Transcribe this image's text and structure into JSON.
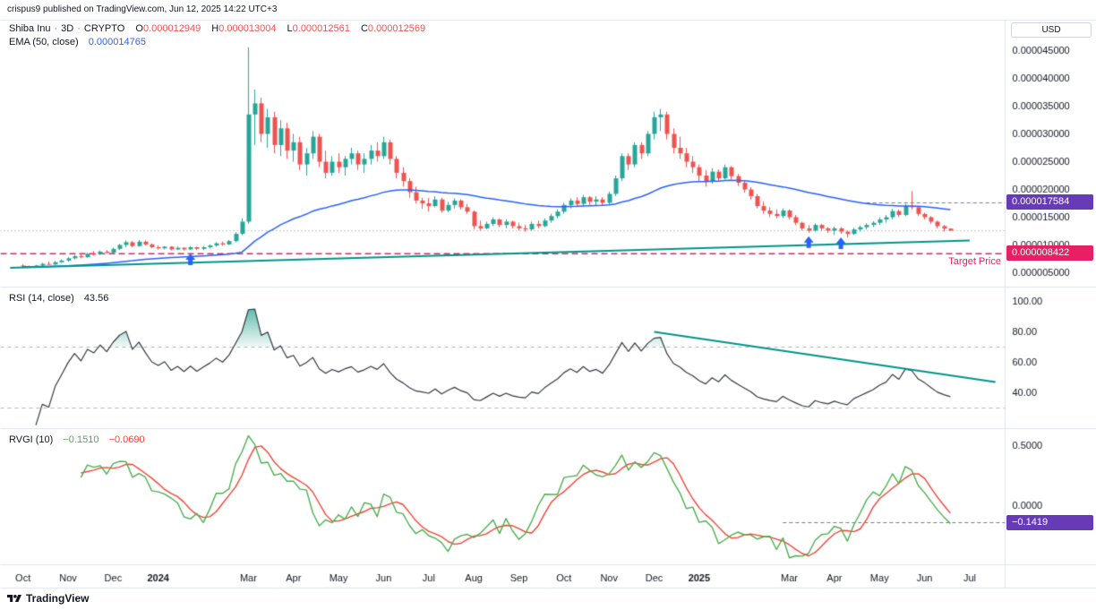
{
  "meta": {
    "attribution": "crispus9 published on TradingView.com, Jun 12, 2025 14:22 UTC+3",
    "footer_brand": "TradingView"
  },
  "axis": {
    "currency": "USD"
  },
  "legend": {
    "symbol": "Shiba Inu",
    "separator": "·",
    "interval": "3D",
    "market": "CRYPTO",
    "ohlc": {
      "o_label": "O",
      "o": "0.000012949",
      "h_label": "H",
      "h": "0.000013004",
      "l_label": "L",
      "l": "0.000012561",
      "c_label": "C",
      "c": "0.000012569"
    },
    "ema_label": "EMA (50, close)",
    "ema_value": "0.000014765",
    "rsi_label": "RSI (14, close)",
    "rsi_value": "43.56",
    "rvgi_label": "RVGI (10)",
    "rvgi_value": "−0.1510",
    "rvgi_signal": "−0.0690"
  },
  "colors": {
    "up": "#26a69a",
    "down": "#ef5350",
    "ema": "#2962ff",
    "trend": "#009688",
    "target": "#e91e63",
    "arrow": "#2962ff",
    "badge_purple": "#673ab7",
    "rsi_line": "#363a45",
    "rsi_fill": "#089981",
    "band": "#b2b5be",
    "rvgi_main": "#4caf50",
    "rvgi_signal": "#f44336",
    "axis_text": "#131722",
    "separator_line": "#e0e3eb",
    "dotted": "#9598a1",
    "ray": "#787b86"
  },
  "chart_data": {
    "type": "candlestick",
    "title": "Shiba Inu · 3D · CRYPTO",
    "price_unit_multiplier": 1e-06,
    "price_ylim_micro": [
      3.5,
      47.6
    ],
    "ema_period": 50,
    "candles": [
      [
        6.3,
        6.5,
        6.0,
        6.1
      ],
      [
        6.1,
        6.3,
        5.9,
        6.0
      ],
      [
        6.0,
        6.4,
        5.9,
        6.3
      ],
      [
        6.3,
        6.8,
        6.2,
        6.6
      ],
      [
        6.6,
        7.0,
        6.4,
        6.5
      ],
      [
        6.5,
        7.1,
        6.4,
        6.9
      ],
      [
        6.9,
        7.4,
        6.8,
        7.2
      ],
      [
        7.2,
        7.8,
        7.0,
        7.6
      ],
      [
        7.6,
        8.2,
        7.4,
        8.0
      ],
      [
        8.0,
        8.5,
        7.6,
        7.8
      ],
      [
        7.8,
        8.6,
        7.7,
        8.4
      ],
      [
        8.4,
        8.9,
        8.1,
        8.3
      ],
      [
        8.3,
        9.0,
        8.2,
        8.8
      ],
      [
        8.8,
        9.1,
        8.4,
        8.6
      ],
      [
        8.6,
        9.5,
        8.5,
        9.3
      ],
      [
        9.3,
        10.2,
        9.1,
        10.0
      ],
      [
        10.0,
        10.8,
        9.6,
        10.5
      ],
      [
        10.5,
        10.7,
        9.6,
        9.8
      ],
      [
        9.8,
        10.9,
        9.7,
        10.6
      ],
      [
        10.6,
        10.8,
        9.9,
        10.1
      ],
      [
        10.1,
        10.3,
        9.4,
        9.6
      ],
      [
        9.6,
        9.9,
        9.2,
        9.4
      ],
      [
        9.4,
        9.8,
        9.2,
        9.7
      ],
      [
        9.7,
        9.8,
        9.0,
        9.2
      ],
      [
        9.2,
        9.7,
        9.1,
        9.5
      ],
      [
        9.5,
        9.6,
        9.0,
        9.2
      ],
      [
        9.2,
        9.8,
        9.1,
        9.6
      ],
      [
        9.6,
        9.7,
        9.1,
        9.3
      ],
      [
        9.3,
        9.8,
        9.1,
        9.6
      ],
      [
        9.6,
        10.1,
        9.4,
        9.9
      ],
      [
        9.9,
        10.5,
        9.7,
        10.3
      ],
      [
        10.3,
        10.6,
        9.9,
        10.1
      ],
      [
        10.1,
        10.9,
        10.0,
        10.7
      ],
      [
        10.7,
        12.3,
        10.5,
        12.0
      ],
      [
        12.0,
        14.8,
        11.8,
        14.2
      ],
      [
        14.2,
        45.6,
        13.8,
        33.5
      ],
      [
        33.5,
        38.0,
        28.0,
        35.5
      ],
      [
        35.5,
        36.5,
        28.5,
        30.0
      ],
      [
        30.0,
        34.5,
        27.5,
        33.0
      ],
      [
        33.0,
        34.0,
        26.5,
        28.0
      ],
      [
        28.0,
        32.5,
        26.0,
        31.0
      ],
      [
        31.0,
        32.0,
        25.5,
        27.0
      ],
      [
        27.0,
        30.0,
        25.0,
        28.5
      ],
      [
        28.5,
        29.5,
        23.5,
        24.5
      ],
      [
        24.5,
        27.5,
        22.5,
        26.5
      ],
      [
        26.5,
        30.5,
        25.5,
        29.5
      ],
      [
        29.5,
        30.0,
        24.0,
        25.0
      ],
      [
        25.0,
        27.0,
        22.0,
        23.0
      ],
      [
        23.0,
        26.0,
        22.5,
        25.0
      ],
      [
        25.0,
        26.5,
        23.0,
        24.0
      ],
      [
        24.0,
        26.0,
        22.5,
        25.5
      ],
      [
        25.5,
        27.5,
        24.5,
        26.5
      ],
      [
        26.5,
        27.0,
        23.5,
        24.5
      ],
      [
        24.5,
        26.5,
        23.0,
        25.5
      ],
      [
        25.5,
        28.0,
        24.5,
        27.0
      ],
      [
        27.0,
        28.5,
        25.0,
        26.0
      ],
      [
        26.0,
        29.5,
        25.5,
        28.5
      ],
      [
        28.5,
        29.0,
        24.5,
        25.5
      ],
      [
        25.5,
        26.0,
        22.0,
        23.0
      ],
      [
        23.0,
        24.0,
        20.5,
        21.5
      ],
      [
        21.5,
        22.0,
        18.5,
        19.5
      ],
      [
        19.5,
        20.5,
        17.5,
        18.0
      ],
      [
        18.0,
        18.5,
        16.5,
        17.5
      ],
      [
        17.5,
        18.5,
        16.0,
        17.0
      ],
      [
        17.0,
        18.8,
        16.8,
        18.2
      ],
      [
        18.2,
        18.5,
        15.8,
        16.2
      ],
      [
        16.2,
        17.8,
        15.9,
        17.2
      ],
      [
        17.2,
        18.4,
        16.6,
        18.0
      ],
      [
        18.0,
        18.2,
        16.4,
        16.8
      ],
      [
        16.8,
        17.4,
        15.6,
        16.0
      ],
      [
        16.0,
        16.2,
        12.8,
        13.4
      ],
      [
        13.4,
        14.4,
        12.6,
        13.0
      ],
      [
        13.0,
        14.2,
        12.8,
        13.8
      ],
      [
        13.8,
        15.0,
        13.4,
        14.6
      ],
      [
        14.6,
        14.8,
        13.2,
        13.6
      ],
      [
        13.6,
        14.6,
        13.0,
        14.2
      ],
      [
        14.2,
        14.4,
        13.0,
        13.4
      ],
      [
        13.4,
        14.0,
        12.6,
        13.0
      ],
      [
        13.0,
        13.6,
        12.4,
        12.8
      ],
      [
        12.8,
        14.2,
        12.6,
        13.8
      ],
      [
        13.8,
        14.4,
        13.0,
        13.4
      ],
      [
        13.4,
        14.8,
        13.2,
        14.4
      ],
      [
        14.4,
        15.6,
        14.0,
        15.2
      ],
      [
        15.2,
        16.4,
        14.8,
        16.0
      ],
      [
        16.0,
        17.6,
        15.6,
        17.2
      ],
      [
        17.2,
        18.4,
        16.6,
        18.0
      ],
      [
        18.0,
        18.6,
        16.8,
        17.4
      ],
      [
        17.4,
        19.0,
        17.0,
        18.6
      ],
      [
        18.6,
        18.8,
        17.2,
        17.8
      ],
      [
        17.8,
        18.8,
        17.0,
        18.2
      ],
      [
        18.2,
        18.6,
        17.0,
        17.6
      ],
      [
        17.6,
        19.6,
        17.2,
        19.2
      ],
      [
        19.2,
        22.5,
        18.8,
        22.0
      ],
      [
        22.0,
        26.5,
        21.5,
        26.0
      ],
      [
        26.0,
        26.5,
        23.5,
        24.5
      ],
      [
        24.5,
        28.5,
        24.0,
        28.0
      ],
      [
        28.0,
        28.5,
        25.5,
        26.5
      ],
      [
        26.5,
        30.5,
        26.0,
        30.0
      ],
      [
        30.0,
        34.0,
        29.0,
        33.0
      ],
      [
        33.0,
        34.5,
        30.5,
        33.5
      ],
      [
        33.5,
        34.0,
        29.0,
        30.0
      ],
      [
        30.0,
        31.0,
        26.5,
        27.5
      ],
      [
        27.5,
        29.5,
        25.5,
        26.5
      ],
      [
        26.5,
        27.5,
        24.0,
        25.0
      ],
      [
        25.0,
        26.0,
        23.0,
        24.0
      ],
      [
        24.0,
        24.5,
        21.5,
        22.5
      ],
      [
        22.5,
        23.5,
        20.5,
        21.5
      ],
      [
        21.5,
        23.8,
        21.0,
        23.2
      ],
      [
        23.2,
        23.6,
        21.6,
        22.0
      ],
      [
        22.0,
        24.5,
        21.8,
        24.0
      ],
      [
        24.0,
        24.2,
        21.8,
        22.4
      ],
      [
        22.4,
        22.8,
        20.6,
        21.2
      ],
      [
        21.2,
        21.6,
        19.4,
        20.0
      ],
      [
        20.0,
        20.4,
        18.2,
        18.8
      ],
      [
        18.8,
        19.2,
        16.6,
        17.0
      ],
      [
        17.0,
        17.8,
        15.6,
        16.2
      ],
      [
        16.2,
        16.8,
        15.0,
        15.6
      ],
      [
        15.6,
        16.4,
        14.8,
        15.2
      ],
      [
        15.2,
        16.6,
        14.9,
        16.2
      ],
      [
        16.2,
        16.4,
        14.6,
        15.0
      ],
      [
        15.0,
        15.4,
        13.6,
        14.0
      ],
      [
        14.0,
        14.2,
        12.6,
        13.0
      ],
      [
        13.0,
        13.6,
        12.2,
        12.6
      ],
      [
        12.6,
        13.9,
        12.4,
        13.6
      ],
      [
        13.6,
        13.8,
        12.6,
        13.0
      ],
      [
        13.0,
        13.2,
        12.2,
        12.6
      ],
      [
        12.6,
        13.3,
        11.8,
        13.0
      ],
      [
        13.0,
        13.2,
        12.0,
        12.4
      ],
      [
        12.4,
        12.6,
        11.4,
        12.0
      ],
      [
        12.0,
        13.1,
        11.8,
        12.8
      ],
      [
        12.8,
        13.5,
        12.4,
        13.2
      ],
      [
        13.2,
        13.9,
        12.8,
        13.6
      ],
      [
        13.6,
        14.3,
        13.2,
        14.0
      ],
      [
        14.0,
        15.0,
        13.6,
        14.6
      ],
      [
        14.6,
        15.4,
        14.0,
        15.0
      ],
      [
        15.0,
        16.5,
        14.6,
        16.1
      ],
      [
        16.1,
        16.4,
        15.0,
        15.4
      ],
      [
        15.4,
        17.4,
        15.2,
        17.0
      ],
      [
        17.0,
        19.7,
        16.4,
        16.8
      ],
      [
        16.8,
        17.0,
        15.2,
        15.6
      ],
      [
        15.6,
        15.8,
        14.6,
        15.0
      ],
      [
        15.0,
        15.2,
        13.8,
        14.2
      ],
      [
        14.2,
        14.4,
        13.0,
        13.4
      ],
      [
        13.4,
        13.6,
        12.4,
        12.949
      ],
      [
        12.949,
        13.004,
        12.561,
        12.569
      ]
    ],
    "price_axis": {
      "tick_values_micro": [
        45,
        40,
        35,
        30,
        25,
        20,
        15,
        10,
        5
      ],
      "tick_labels": [
        "0.000045000",
        "0.000040000",
        "0.000035000",
        "0.000030000",
        "0.000025000",
        "0.000020000",
        "0.000015000",
        "0.000010000",
        "0.000005000"
      ]
    },
    "time_axis": {
      "labels": [
        {
          "text": "Oct",
          "bar": 0,
          "bold": false
        },
        {
          "text": "Nov",
          "bar": 7,
          "bold": false
        },
        {
          "text": "Dec",
          "bar": 14,
          "bold": false
        },
        {
          "text": "2024",
          "bar": 21,
          "bold": true
        },
        {
          "text": "Mar",
          "bar": 35,
          "bold": false
        },
        {
          "text": "Apr",
          "bar": 42,
          "bold": false
        },
        {
          "text": "May",
          "bar": 49,
          "bold": false
        },
        {
          "text": "Jun",
          "bar": 56,
          "bold": false
        },
        {
          "text": "Jul",
          "bar": 63,
          "bold": false
        },
        {
          "text": "Aug",
          "bar": 70,
          "bold": false
        },
        {
          "text": "Sep",
          "bar": 77,
          "bold": false
        },
        {
          "text": "Oct",
          "bar": 84,
          "bold": false
        },
        {
          "text": "Nov",
          "bar": 91,
          "bold": false
        },
        {
          "text": "Dec",
          "bar": 98,
          "bold": false
        },
        {
          "text": "2025",
          "bar": 105,
          "bold": true
        },
        {
          "text": "Mar",
          "bar": 119,
          "bold": false
        },
        {
          "text": "Apr",
          "bar": 126,
          "bold": false
        },
        {
          "text": "May",
          "bar": 133,
          "bold": false
        },
        {
          "text": "Jun",
          "bar": 140,
          "bold": false
        },
        {
          "text": "Jul",
          "bar": 147,
          "bold": false
        }
      ]
    },
    "rsi": {
      "period": 14,
      "bands": [
        70,
        30
      ],
      "tick_values": [
        100,
        80,
        60,
        40
      ],
      "tick_labels": [
        "100.00",
        "80.00",
        "60.00",
        "40.00"
      ],
      "trendline": {
        "bar1": 98,
        "v1": 80,
        "bar2": 151,
        "v2": 47
      }
    },
    "rvgi": {
      "period": 10,
      "tick_values": [
        0.5,
        0
      ],
      "tick_labels": [
        "0.5000",
        "0.0000"
      ],
      "level": {
        "value": -0.1419,
        "from_bar": 118,
        "badge": "−0.1419"
      }
    },
    "drawings": {
      "support_trendline": {
        "bar1": -2,
        "price1": 5.9,
        "bar2": 147,
        "price2": 10.8
      },
      "target_line": {
        "price": 8.422,
        "label": "Target Price",
        "badge": "0.000008422"
      },
      "level_ray": {
        "price": 17.584,
        "from_bar": 130,
        "badge": "0.000017584"
      },
      "last_close_line": {
        "price": 12.569
      }
    },
    "markers_up_arrows": [
      {
        "bar": 26
      },
      {
        "bar": 122
      },
      {
        "bar": 127
      }
    ]
  }
}
